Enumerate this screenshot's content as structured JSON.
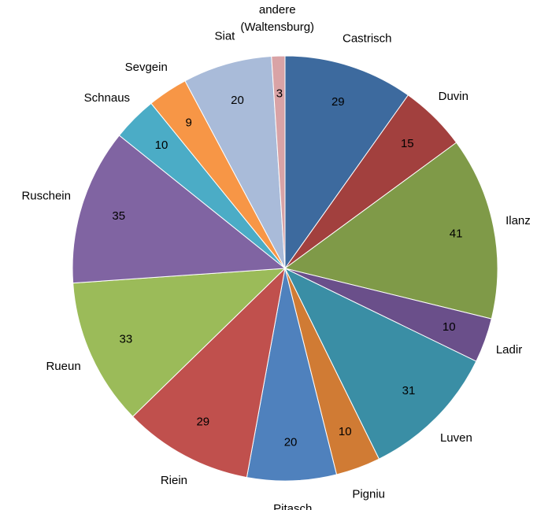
{
  "chart_data": {
    "type": "pie",
    "categories": [
      "Castrisch",
      "Duvin",
      "Ilanz",
      "Ladir",
      "Luven",
      "Pigniu",
      "Pitasch",
      "Riein",
      "Rueun",
      "Ruschein",
      "Schnaus",
      "Sevgein",
      "Siat",
      "andere (Waltensburg)"
    ],
    "values": [
      29,
      15,
      41,
      10,
      31,
      10,
      20,
      29,
      33,
      35,
      10,
      9,
      20,
      3
    ],
    "colors": [
      "#3d6a9e",
      "#a2403e",
      "#7f9a48",
      "#6a4f8a",
      "#3a8ea5",
      "#d07b34",
      "#4f81bd",
      "#c0504d",
      "#9bbb59",
      "#8064a2",
      "#4bacc6",
      "#f79646",
      "#a9bbd9",
      "#d9a3a6"
    ]
  }
}
